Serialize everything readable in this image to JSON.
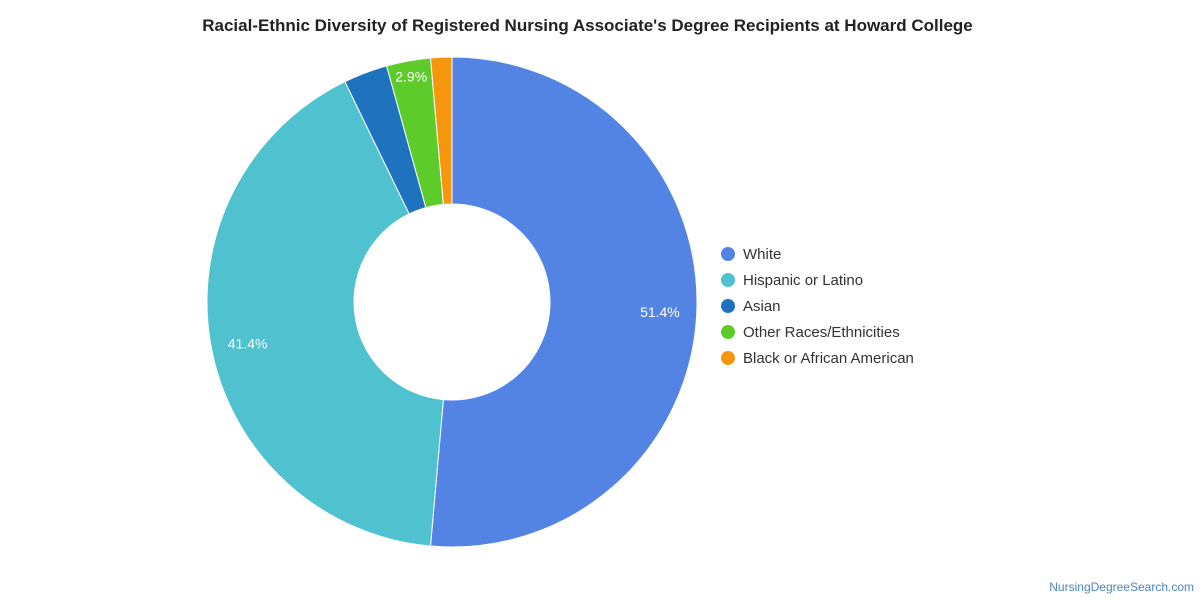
{
  "chart_data": {
    "type": "pie",
    "title": "Racial-Ethnic Diversity of Registered Nursing Associate's Degree Recipients at Howard College",
    "donut": true,
    "legend_position": "right",
    "slices": [
      {
        "label": "White",
        "value": 51.4,
        "color": "#5484e3",
        "display_label": "51.4%"
      },
      {
        "label": "Hispanic or Latino",
        "value": 41.4,
        "color": "#50c1cf",
        "display_label": "41.4%"
      },
      {
        "label": "Asian",
        "value": 2.9,
        "color": "#1f72bd",
        "display_label": ""
      },
      {
        "label": "Other Races/Ethnicities",
        "value": 2.9,
        "color": "#5dcc2a",
        "display_label": "2.9%"
      },
      {
        "label": "Black or African American",
        "value": 1.4,
        "color": "#f5960d",
        "display_label": ""
      }
    ]
  },
  "credit": "NursingDegreeSearch.com"
}
